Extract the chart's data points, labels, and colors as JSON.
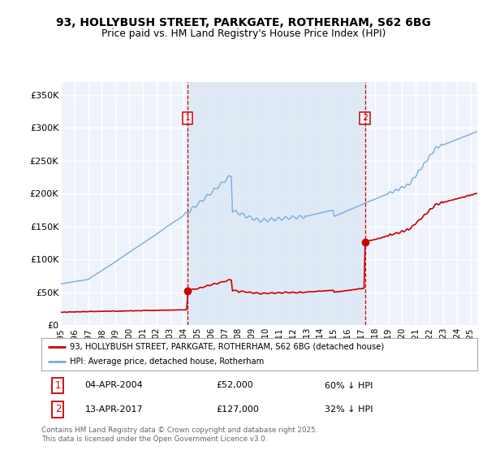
{
  "title_line1": "93, HOLLYBUSH STREET, PARKGATE, ROTHERHAM, S62 6BG",
  "title_line2": "Price paid vs. HM Land Registry's House Price Index (HPI)",
  "ylabel_ticks": [
    "£0",
    "£50K",
    "£100K",
    "£150K",
    "£200K",
    "£250K",
    "£300K",
    "£350K"
  ],
  "ytick_vals": [
    0,
    50000,
    100000,
    150000,
    200000,
    250000,
    300000,
    350000
  ],
  "ylim": [
    0,
    370000
  ],
  "xlim_start": 1995.0,
  "xlim_end": 2025.5,
  "sale1_x": 2004.27,
  "sale1_y": 52000,
  "sale2_x": 2017.28,
  "sale2_y": 127000,
  "sale_color": "#cc0000",
  "hpi_color": "#7aaadd",
  "shade_color": "#dce8f5",
  "legend_label_red": "93, HOLLYBUSH STREET, PARKGATE, ROTHERHAM, S62 6BG (detached house)",
  "legend_label_blue": "HPI: Average price, detached house, Rotherham",
  "annotation1_date": "04-APR-2004",
  "annotation1_price": "£52,000",
  "annotation1_pct": "60% ↓ HPI",
  "annotation2_date": "13-APR-2017",
  "annotation2_price": "£127,000",
  "annotation2_pct": "32% ↓ HPI",
  "footer": "Contains HM Land Registry data © Crown copyright and database right 2025.\nThis data is licensed under the Open Government Licence v3.0.",
  "background_color": "#ffffff",
  "plot_bg_color": "#eef3fb",
  "grid_color": "#ffffff",
  "xtick_years": [
    1995,
    1996,
    1997,
    1998,
    1999,
    2000,
    2001,
    2002,
    2003,
    2004,
    2005,
    2006,
    2007,
    2008,
    2009,
    2010,
    2011,
    2012,
    2013,
    2014,
    2015,
    2016,
    2017,
    2018,
    2019,
    2020,
    2021,
    2022,
    2023,
    2024,
    2025
  ]
}
